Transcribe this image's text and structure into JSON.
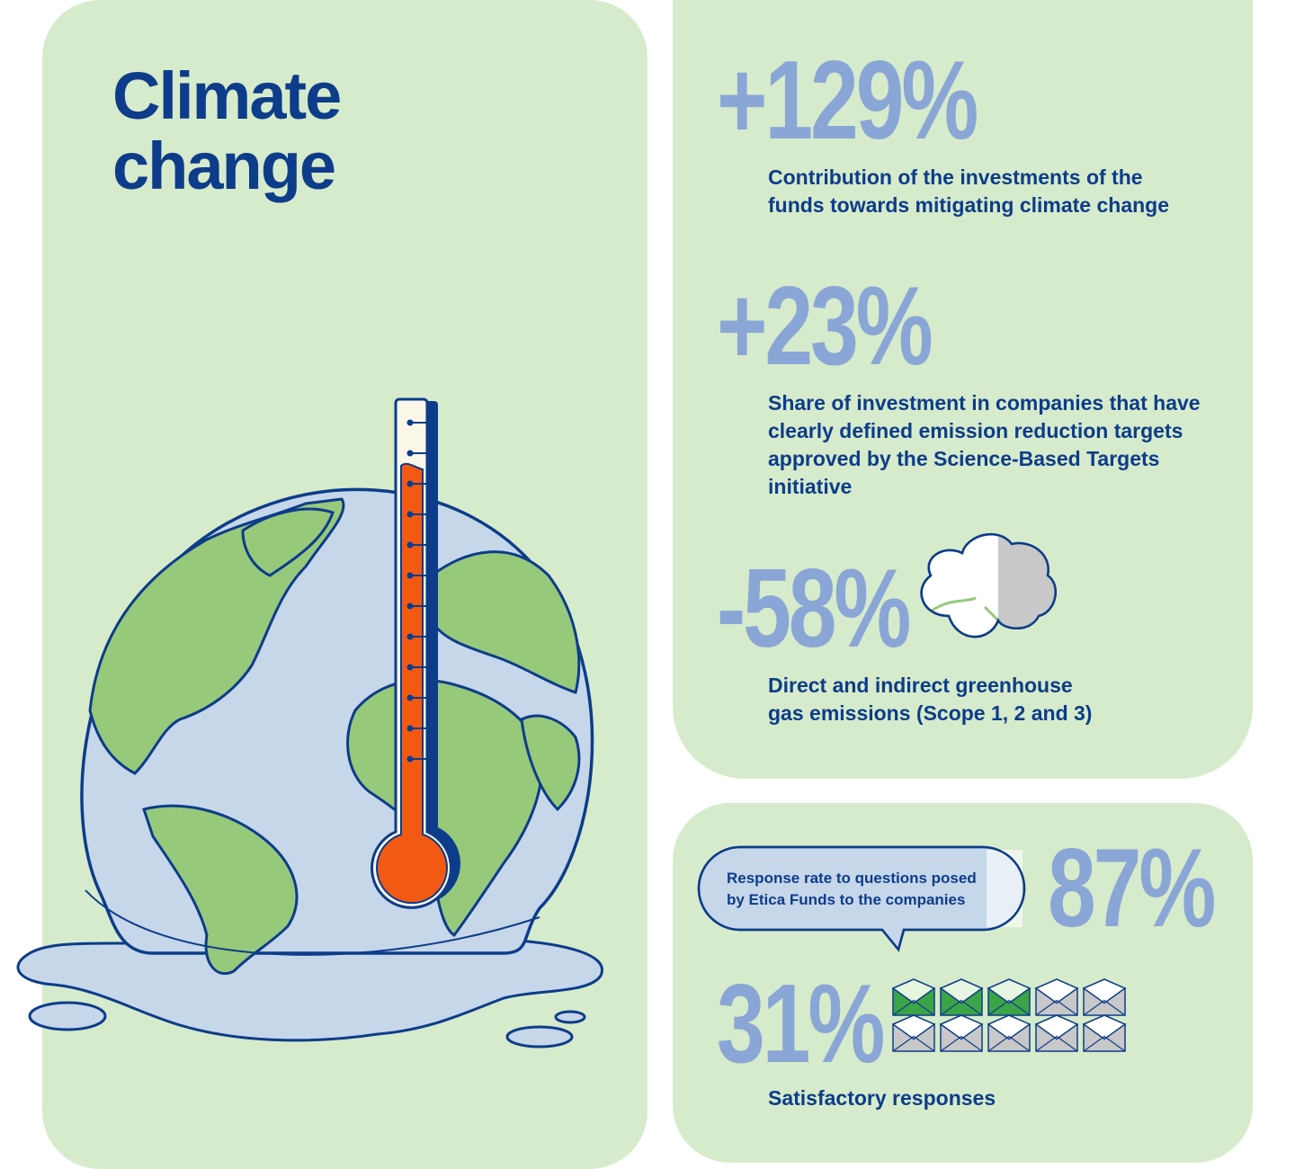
{
  "title": {
    "line1": "Climate",
    "line2": "change"
  },
  "stats": [
    {
      "value": "+129%",
      "description": "Contribution of the investments of the funds towards mitigating climate change"
    },
    {
      "value": "+23%",
      "description": "Share of investment in companies that have clearly defined emission reduction targets approved by the Science-Based Targets initiative"
    },
    {
      "value": "-58%",
      "description": "Direct and indirect greenhouse gas emissions (Scope 1, 2 and 3)"
    }
  ],
  "engagement": {
    "response_rate_label": "Response rate to questions posed by Etica Funds to the companies",
    "response_rate_value": "87%",
    "satisfactory_value": "31%",
    "satisfactory_label": "Satisfactory responses",
    "envelopes": {
      "total": 10,
      "highlighted": 3
    }
  },
  "icons": [
    "globe-icon",
    "thermometer-icon",
    "cloud-icon",
    "speech-bubble-icon",
    "envelope-icon"
  ],
  "colors": {
    "card_bg": "#d6ebcb",
    "navy": "#0d3c8a",
    "stat_blue": "#8aa6d6",
    "water": "#c6d7ea",
    "land": "#97c97b",
    "mercury": "#f25a14",
    "envelope_green": "#3aa447",
    "envelope_gray": "#c8c8c8"
  }
}
